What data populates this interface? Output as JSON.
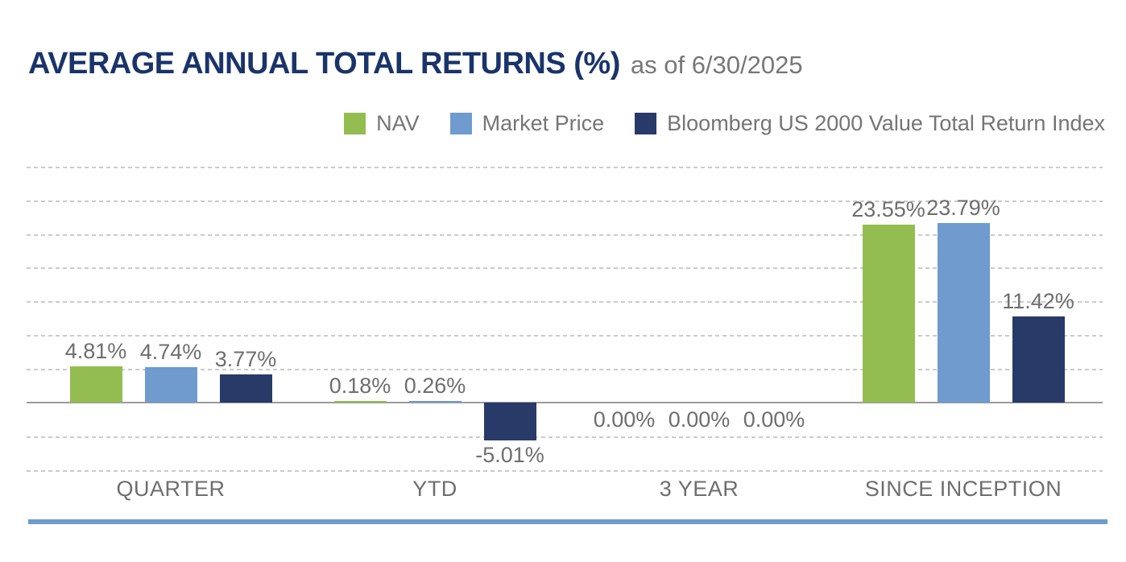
{
  "header": {
    "title": "AVERAGE ANNUAL TOTAL RETURNS (%)",
    "subtitle": "as of 6/30/2025",
    "title_color": "#1a346a",
    "subtitle_color": "#777777"
  },
  "legend": {
    "position": "top-right",
    "items": [
      {
        "label": "NAV",
        "color": "#93bd51"
      },
      {
        "label": "Market Price",
        "color": "#6f9bce"
      },
      {
        "label": "Bloomberg US 2000 Value Total Return Index",
        "color": "#283a68"
      }
    ]
  },
  "chart_data": {
    "type": "bar",
    "title": "AVERAGE ANNUAL TOTAL RETURNS (%)",
    "subtitle": "as of 6/30/2025",
    "categories": [
      "QUARTER",
      "YTD",
      "3 YEAR",
      "SINCE INCEPTION"
    ],
    "series": [
      {
        "name": "NAV",
        "color": "#93bd51",
        "values": [
          4.81,
          0.18,
          0.0,
          23.55
        ],
        "labels": [
          "4.81%",
          "0.18%",
          "0.00%",
          "23.55%"
        ]
      },
      {
        "name": "Market Price",
        "color": "#6f9bce",
        "values": [
          4.74,
          0.26,
          0.0,
          23.79
        ],
        "labels": [
          "4.74%",
          "0.26%",
          "0.00%",
          "23.79%"
        ]
      },
      {
        "name": "Bloomberg US 2000 Value Total Return Index",
        "color": "#283a68",
        "values": [
          3.77,
          -5.01,
          0.0,
          11.42
        ],
        "labels": [
          "3.77%",
          "-5.01%",
          "0.00%",
          "11.42%"
        ]
      }
    ],
    "xlabel": "",
    "ylabel": "",
    "ylim": [
      -9.2,
      31.6
    ],
    "grid": "dashed horizontal, unlabeled",
    "legend_position": "top",
    "gridline_color": "#cbcbcb",
    "zero_line_color": "#9b9b9b",
    "label_color": "#6e6e6e"
  },
  "footer": {
    "accent_bar_color": "#6f9bce"
  }
}
